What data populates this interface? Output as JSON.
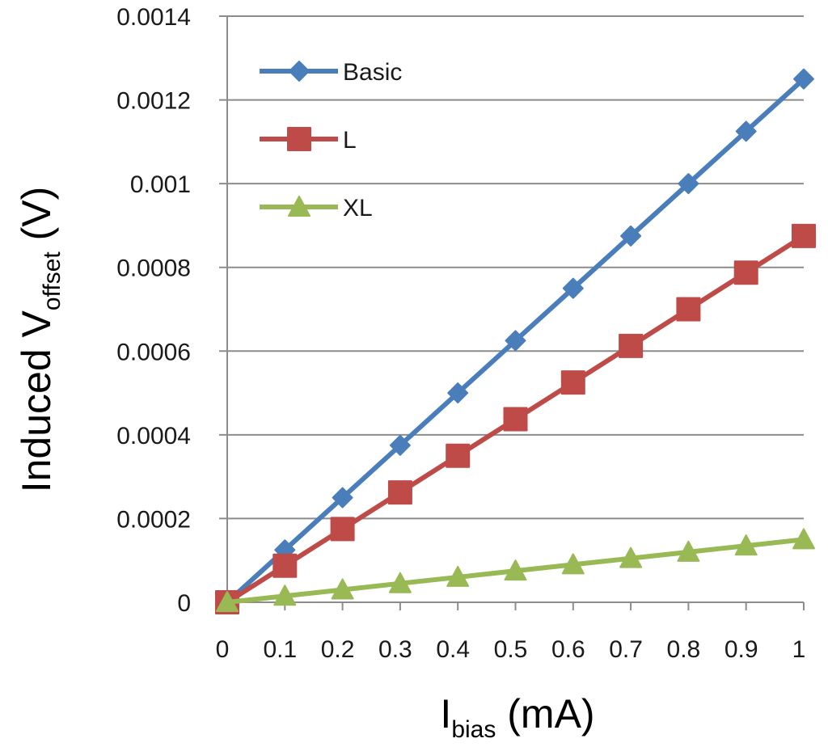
{
  "chart_data": {
    "type": "line",
    "x": [
      0,
      0.1,
      0.2,
      0.3,
      0.4,
      0.5,
      0.6,
      0.7,
      0.8,
      0.9,
      1
    ],
    "x_tick_labels": [
      "0",
      "0.1",
      "0.2",
      "0.3",
      "0.4",
      "0.5",
      "0.6",
      "0.7",
      "0.8",
      "0.9",
      "1"
    ],
    "y_tick_labels": [
      "0",
      "0.0002",
      "0.0004",
      "0.0006",
      "0.0008",
      "0.001",
      "0.0012",
      "0.0014"
    ],
    "xlim": [
      0,
      1
    ],
    "ylim": [
      0,
      0.0014
    ],
    "xlabel": {
      "main": "I",
      "sub": "bias",
      "rest": " (mA)"
    },
    "ylabel": {
      "main": "Induced V",
      "sub": "offset",
      "rest": " (V)"
    },
    "grid": "horizontal",
    "legend_position": "top-left",
    "series": [
      {
        "name": "Basic",
        "color": "#4a7ebb",
        "marker": "diamond",
        "values": [
          0,
          0.000125,
          0.00025,
          0.000375,
          0.0005,
          0.000625,
          0.00075,
          0.000875,
          0.001,
          0.001125,
          0.00125
        ]
      },
      {
        "name": "L",
        "color": "#be4b48",
        "marker": "square",
        "values": [
          0,
          8.75e-05,
          0.000175,
          0.0002625,
          0.00035,
          0.0004375,
          0.000525,
          0.0006125,
          0.0007,
          0.0007875,
          0.000875
        ]
      },
      {
        "name": "XL",
        "color": "#98b954",
        "marker": "triangle",
        "values": [
          0,
          1.5e-05,
          3e-05,
          4.5e-05,
          6e-05,
          7.5e-05,
          9e-05,
          0.000105,
          0.00012,
          0.000135,
          0.00015
        ]
      }
    ]
  }
}
